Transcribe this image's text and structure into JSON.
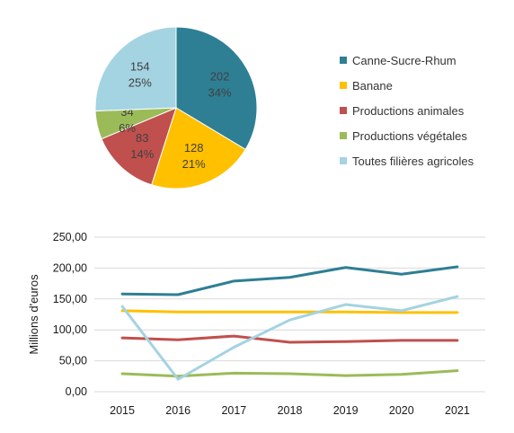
{
  "colors": {
    "canne": "#2E7F94",
    "banane": "#FFC000",
    "animales": "#C0504D",
    "vegetales": "#9BBB59",
    "toutes": "#A4D3E2"
  },
  "chart_data": [
    {
      "type": "pie",
      "slices": [
        {
          "name": "Canne-Sucre-Rhum",
          "value": 202,
          "percent": "34%",
          "color": "#2E7F94"
        },
        {
          "name": "Banane",
          "value": 128,
          "percent": "21%",
          "color": "#FFC000"
        },
        {
          "name": "Productions animales",
          "value": 83,
          "percent": "14%",
          "color": "#C0504D"
        },
        {
          "name": "Productions végétales",
          "value": 34,
          "percent": "6%",
          "color": "#9BBB59"
        },
        {
          "name": "Toutes filières agricoles",
          "value": 154,
          "percent": "25%",
          "color": "#A4D3E2"
        }
      ],
      "legend_position": "right"
    },
    {
      "type": "line",
      "x": [
        "2015",
        "2016",
        "2017",
        "2018",
        "2019",
        "2020",
        "2021"
      ],
      "ylabel": "Millions d'euros",
      "xlabel": "",
      "ylim": [
        0,
        250
      ],
      "yticks": [
        "0,00",
        "50,00",
        "100,00",
        "150,00",
        "200,00",
        "250,00"
      ],
      "grid": true,
      "series": [
        {
          "name": "Canne-Sucre-Rhum",
          "color": "#2E7F94",
          "values": [
            158,
            157,
            179,
            185,
            201,
            190,
            202
          ]
        },
        {
          "name": "Banane",
          "color": "#FFC000",
          "values": [
            131,
            129,
            129,
            129,
            129,
            128,
            128
          ]
        },
        {
          "name": "Productions animales",
          "color": "#C0504D",
          "values": [
            87,
            84,
            90,
            80,
            81,
            83,
            83
          ]
        },
        {
          "name": "Productions végétales",
          "color": "#9BBB59",
          "values": [
            29,
            25,
            30,
            29,
            26,
            28,
            34
          ]
        },
        {
          "name": "Toutes filières agricoles",
          "color": "#A4D3E2",
          "values": [
            138,
            20,
            72,
            116,
            141,
            131,
            154
          ]
        }
      ]
    }
  ]
}
